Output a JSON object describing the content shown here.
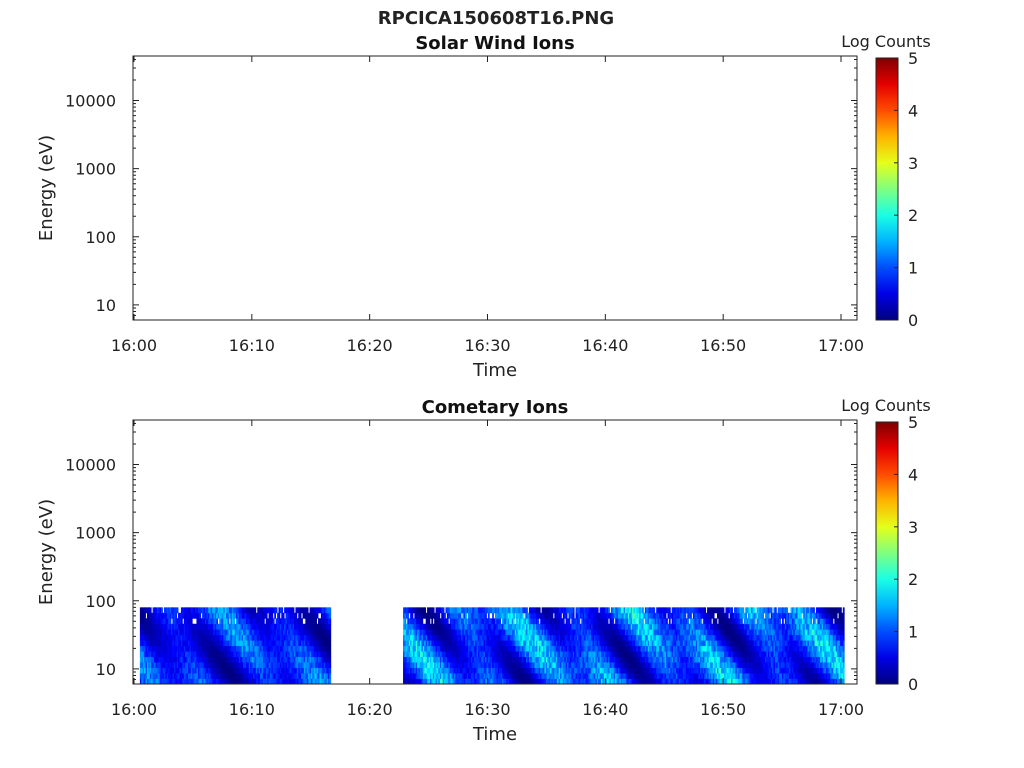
{
  "figure_title": "RPCICA150608T16.PNG",
  "chart_data": [
    {
      "type": "heatmap",
      "title": "Solar Wind Ions",
      "xlabel": "Time",
      "ylabel": "Energy (eV)",
      "x_ticks": [
        "16:00",
        "16:10",
        "16:20",
        "16:30",
        "16:40",
        "16:50",
        "17:00"
      ],
      "y_scale": "log",
      "y_ticks": [
        "10",
        "100",
        "1000",
        "10000"
      ],
      "ylim": [
        6,
        45000
      ],
      "xlim": [
        "16:00",
        "17:00"
      ],
      "colorbar": {
        "label": "Log Counts",
        "ticks": [
          "0",
          "1",
          "2",
          "3",
          "4",
          "5"
        ],
        "range": [
          0,
          5
        ],
        "colormap": "jet"
      },
      "data_segments": []
    },
    {
      "type": "heatmap",
      "title": "Cometary Ions",
      "xlabel": "Time",
      "ylabel": "Energy (eV)",
      "x_ticks": [
        "16:00",
        "16:10",
        "16:20",
        "16:30",
        "16:40",
        "16:50",
        "17:00"
      ],
      "y_scale": "log",
      "y_ticks": [
        "10",
        "100",
        "1000",
        "10000"
      ],
      "ylim": [
        6,
        45000
      ],
      "xlim": [
        "16:00",
        "17:00"
      ],
      "colorbar": {
        "label": "Log Counts",
        "ticks": [
          "0",
          "1",
          "2",
          "3",
          "4",
          "5"
        ],
        "range": [
          0,
          5
        ],
        "colormap": "jet"
      },
      "data_segments": [
        {
          "start": "16:00:30",
          "end": "16:16:40",
          "energy_min": 6,
          "energy_max": 80,
          "log_counts_range": [
            0,
            1.8
          ]
        },
        {
          "start": "16:22:50",
          "end": "17:00:10",
          "energy_min": 6,
          "energy_max": 80,
          "log_counts_range": [
            0,
            2.3
          ]
        }
      ]
    }
  ]
}
